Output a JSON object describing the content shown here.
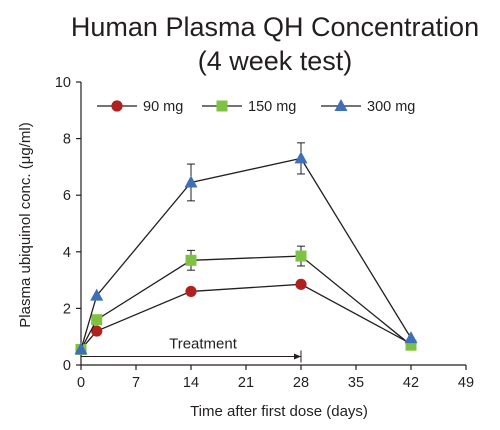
{
  "chart_data": {
    "type": "line",
    "title": [
      "Human Plasma QH Concentration",
      "(4 week test)"
    ],
    "xlabel": "Time after first dose (days)",
    "ylabel": "Plasma ubiquinol conc. (μg/ml)",
    "xlim": [
      0,
      49
    ],
    "ylim": [
      0,
      10
    ],
    "x_ticks": [
      0,
      7,
      14,
      21,
      28,
      35,
      42,
      49
    ],
    "y_ticks": [
      0,
      2,
      4,
      6,
      8,
      10
    ],
    "grid": false,
    "legend_position": "top",
    "series": [
      {
        "name": "90 mg",
        "marker": "circle",
        "color": "#b0201e",
        "x": [
          0,
          2,
          14,
          28,
          42
        ],
        "y": [
          0.55,
          1.2,
          2.6,
          2.85,
          0.75
        ],
        "err": [
          0,
          0,
          0,
          0,
          0
        ]
      },
      {
        "name": "150 mg",
        "marker": "square",
        "color": "#7dc242",
        "x": [
          0,
          2,
          14,
          28,
          42
        ],
        "y": [
          0.55,
          1.6,
          3.7,
          3.85,
          0.7
        ],
        "err": [
          0,
          0,
          0.35,
          0.35,
          0
        ]
      },
      {
        "name": "300 mg",
        "marker": "triangle",
        "color": "#3f6fb6",
        "x": [
          0,
          2,
          14,
          28,
          42
        ],
        "y": [
          0.55,
          2.45,
          6.45,
          7.3,
          0.95
        ],
        "err": [
          0,
          0,
          0.65,
          0.55,
          0
        ]
      }
    ],
    "annotations": [
      {
        "text": "Treatment",
        "x_start": 0,
        "x_end": 28,
        "y": 0.3
      }
    ]
  }
}
